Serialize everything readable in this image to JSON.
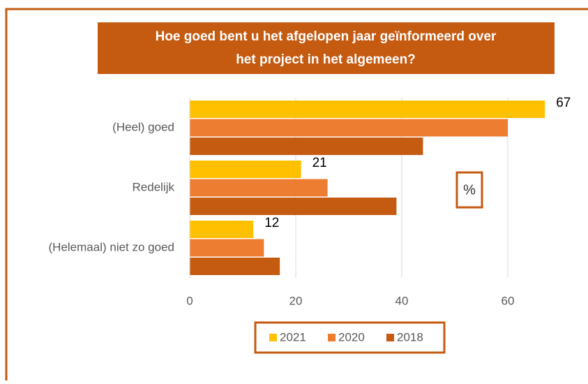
{
  "chart_data": {
    "type": "hbar",
    "title": [
      "Hoe goed bent u het afgelopen jaar geïnformeerd over",
      "het project in het algemeen?"
    ],
    "annotation": "%",
    "categories": [
      "(Heel) goed",
      "Redelijk",
      "(Helemaal) niet zo goed"
    ],
    "series": [
      {
        "name": "2021",
        "color": "#ffc000",
        "values": [
          67,
          21,
          12
        ],
        "show_labels": true
      },
      {
        "name": "2020",
        "color": "#ed7d31",
        "values": [
          60,
          26,
          14
        ]
      },
      {
        "name": "2018",
        "color": "#c55a11",
        "values": [
          44,
          39,
          17
        ]
      }
    ],
    "xlim": [
      0,
      70
    ],
    "xticks": [
      0,
      20,
      40,
      60
    ],
    "grid": true,
    "legend": "bottom"
  }
}
